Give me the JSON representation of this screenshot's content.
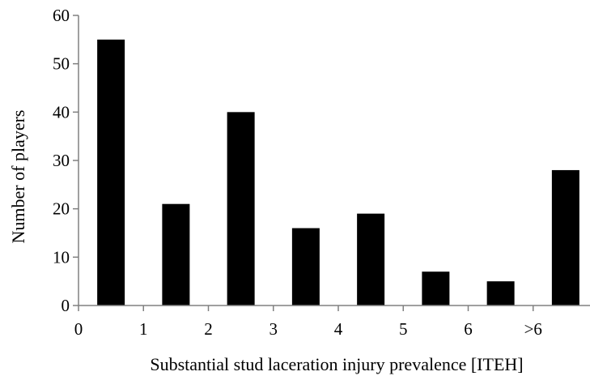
{
  "chart_data": {
    "type": "bar",
    "title": "",
    "xlabel": "Substantial stud laceration injury prevalence [ITEH]",
    "ylabel": "Number of players",
    "x_tick_labels": [
      "0",
      "1",
      "2",
      "3",
      "4",
      "5",
      "6",
      ">6"
    ],
    "categories": [
      "0-1",
      "1-2",
      "2-3",
      "3-4",
      "4-5",
      "5-6",
      "6-7",
      ">6"
    ],
    "values": [
      55,
      21,
      40,
      16,
      19,
      7,
      5,
      28
    ],
    "ylim": [
      0,
      60
    ],
    "yticks": [
      0,
      10,
      20,
      30,
      40,
      50,
      60
    ],
    "grid": false,
    "legend": "none",
    "bar_color": "#000000",
    "axis_color": "#808080"
  }
}
